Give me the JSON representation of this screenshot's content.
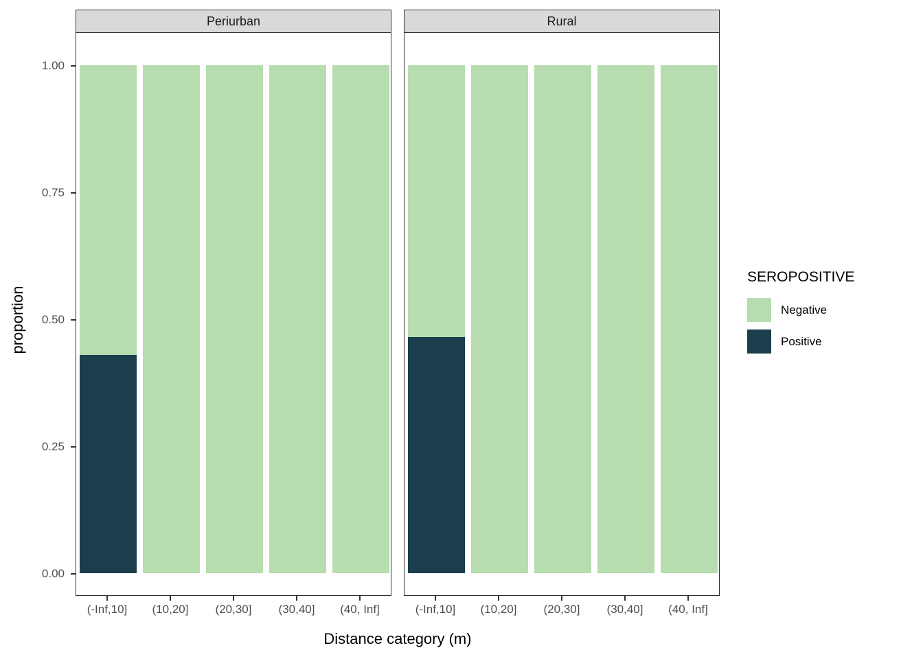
{
  "chart_data": {
    "type": "bar",
    "stacked": true,
    "title": "",
    "xlabel": "Distance category (m)",
    "ylabel": "proportion",
    "ylim": [
      0,
      1
    ],
    "y_ticks": [
      "0.00",
      "0.25",
      "0.50",
      "0.75",
      "1.00"
    ],
    "categories": [
      "(-Inf,10]",
      "(10,20]",
      "(20,30]",
      "(30,40]",
      "(40, Inf]"
    ],
    "legend_title": "SEROPOSITIVE",
    "legend_position": "right",
    "legend_items": [
      {
        "label": "Negative",
        "color": "#b7dcb0"
      },
      {
        "label": "Positive",
        "color": "#1b3e4d"
      }
    ],
    "colors": {
      "Negative": "#b7dcb0",
      "Positive": "#1b3e4d"
    },
    "facets": [
      {
        "name": "Periurban",
        "series": [
          {
            "name": "Positive",
            "values": [
              0.43,
              0,
              0,
              0,
              0
            ]
          },
          {
            "name": "Negative",
            "values": [
              0.57,
              1,
              1,
              1,
              1
            ]
          }
        ]
      },
      {
        "name": "Rural",
        "series": [
          {
            "name": "Positive",
            "values": [
              0.465,
              0,
              0,
              0,
              0
            ]
          },
          {
            "name": "Negative",
            "values": [
              0.535,
              1,
              1,
              1,
              1
            ]
          }
        ]
      }
    ]
  }
}
